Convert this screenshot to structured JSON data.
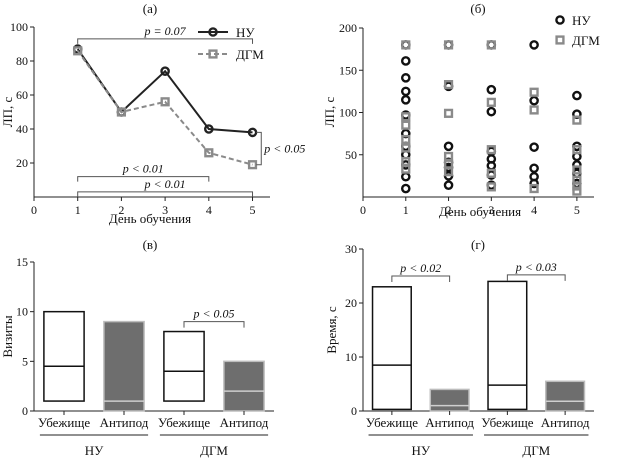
{
  "chart_data": [
    {
      "panel": "(а)",
      "type": "line",
      "xlabel": "День обучения",
      "ylabel": "ЛП, с",
      "xlim": [
        0,
        5.4
      ],
      "ylim": [
        0,
        100
      ],
      "xticks": [
        "0",
        "1",
        "2",
        "3",
        "4",
        "5"
      ],
      "yticks": [
        "20",
        "40",
        "60",
        "80",
        "100"
      ],
      "x": [
        1,
        2,
        3,
        4,
        5
      ],
      "series": [
        {
          "name": "НУ",
          "values": [
            87,
            50,
            74,
            40,
            38
          ],
          "color": "#222222",
          "dash": false
        },
        {
          "name": "ДГМ",
          "values": [
            86,
            50,
            56,
            26,
            19
          ],
          "color": "#8a8a8a",
          "dash": true
        }
      ],
      "legend": "top-right",
      "annotations": [
        {
          "text": "p = 0.07",
          "x1": 1,
          "x2": 5,
          "y": 93
        },
        {
          "text": "p < 0.01",
          "x1": 1,
          "x2": 4,
          "y": 12
        },
        {
          "text": "p < 0.01",
          "x1": 1,
          "x2": 5,
          "y": 3
        },
        {
          "text": "p < 0.05",
          "y1": 38,
          "y2": 19,
          "x": 5.2
        }
      ]
    },
    {
      "panel": "(б)",
      "type": "scatter",
      "xlabel": "День обучения",
      "ylabel": "ЛП, с",
      "xlim": [
        0,
        5.4
      ],
      "ylim": [
        0,
        200
      ],
      "xticks": [
        "0",
        "1",
        "2",
        "3",
        "4",
        "5"
      ],
      "yticks": [
        "50",
        "100",
        "150",
        "200"
      ],
      "legend": "top-right",
      "series": [
        {
          "name": "НУ",
          "color": "#111111",
          "points": [
            [
              1,
              180
            ],
            [
              1,
              161
            ],
            [
              1,
              141
            ],
            [
              1,
              125
            ],
            [
              1,
              115
            ],
            [
              1,
              97
            ],
            [
              1,
              75
            ],
            [
              1,
              60
            ],
            [
              1,
              50
            ],
            [
              1,
              38
            ],
            [
              1,
              24
            ],
            [
              1,
              10
            ],
            [
              2,
              180
            ],
            [
              2,
              131
            ],
            [
              2,
              60
            ],
            [
              2,
              41
            ],
            [
              2,
              35
            ],
            [
              2,
              25
            ],
            [
              2,
              14
            ],
            [
              3,
              180
            ],
            [
              3,
              127
            ],
            [
              3,
              101
            ],
            [
              3,
              54
            ],
            [
              3,
              45
            ],
            [
              3,
              37
            ],
            [
              3,
              26
            ],
            [
              3,
              14
            ],
            [
              4,
              180
            ],
            [
              4,
              114
            ],
            [
              4,
              59
            ],
            [
              4,
              34
            ],
            [
              4,
              24
            ],
            [
              4,
              16
            ],
            [
              5,
              120
            ],
            [
              5,
              98
            ],
            [
              5,
              60
            ],
            [
              5,
              48
            ],
            [
              5,
              38
            ],
            [
              5,
              28
            ],
            [
              5,
              16
            ]
          ]
        },
        {
          "name": "ДГМ",
          "color": "#8a8a8a",
          "points": [
            [
              1,
              180
            ],
            [
              1,
              95
            ],
            [
              1,
              85
            ],
            [
              1,
              68
            ],
            [
              1,
              58
            ],
            [
              1,
              42
            ],
            [
              1,
              33
            ],
            [
              2,
              180
            ],
            [
              2,
              133
            ],
            [
              2,
              99
            ],
            [
              2,
              48
            ],
            [
              2,
              39
            ],
            [
              2,
              30
            ],
            [
              3,
              180
            ],
            [
              3,
              112
            ],
            [
              3,
              56
            ],
            [
              3,
              28
            ],
            [
              3,
              12
            ],
            [
              4,
              124
            ],
            [
              4,
              103
            ],
            [
              4,
              10
            ],
            [
              5,
              91
            ],
            [
              5,
              56
            ],
            [
              5,
              32
            ],
            [
              5,
              20
            ],
            [
              5,
              13
            ],
            [
              5,
              7
            ]
          ]
        }
      ]
    },
    {
      "panel": "(в)",
      "type": "bar",
      "ylabel": "Визиты",
      "ylim": [
        0,
        15
      ],
      "yticks": [
        "0",
        "5",
        "10",
        "15"
      ],
      "categories": [
        "Убежище",
        "Антипод",
        "Убежище",
        "Антипод"
      ],
      "groups": [
        "НУ",
        "ДГМ"
      ],
      "boxes": [
        {
          "low": 1,
          "median": 4.5,
          "high": 10,
          "fill": "white"
        },
        {
          "low": 0,
          "median": 1,
          "high": 9,
          "fill": "gray"
        },
        {
          "low": 1,
          "median": 4,
          "high": 8,
          "fill": "white"
        },
        {
          "low": 0,
          "median": 2,
          "high": 5,
          "fill": "gray"
        }
      ],
      "annotations": [
        {
          "text": "p < 0.05",
          "between": [
            2,
            3
          ],
          "y": 9
        }
      ]
    },
    {
      "panel": "(г)",
      "type": "bar",
      "ylabel": "Время, с",
      "ylim": [
        0,
        30
      ],
      "yticks": [
        "0",
        "10",
        "20",
        "30"
      ],
      "categories": [
        "Убежище",
        "Антипод",
        "Убежище",
        "Антипод"
      ],
      "groups": [
        "НУ",
        "ДГМ"
      ],
      "boxes": [
        {
          "low": 0.3,
          "median": 8.5,
          "high": 23,
          "fill": "white"
        },
        {
          "low": 0,
          "median": 1,
          "high": 4,
          "fill": "gray"
        },
        {
          "low": 0.3,
          "median": 4.8,
          "high": 24,
          "fill": "white"
        },
        {
          "low": 0,
          "median": 1.8,
          "high": 5.5,
          "fill": "gray"
        }
      ],
      "annotations": [
        {
          "text": "p < 0.02",
          "between": [
            0,
            1
          ],
          "y": 25
        },
        {
          "text": "p < 0.03",
          "between": [
            2,
            3
          ],
          "y": 25.2
        }
      ]
    }
  ],
  "texts": {
    "p1_annot_top": "p = 0.07",
    "p1_annot_b1": "p < 0.01",
    "p1_annot_b2": "p < 0.01",
    "p1_annot_side": "p < 0.05",
    "p3_annot": "p < 0.05",
    "p4_annot1": "p < 0.02",
    "p4_annot2": "p < 0.03"
  }
}
